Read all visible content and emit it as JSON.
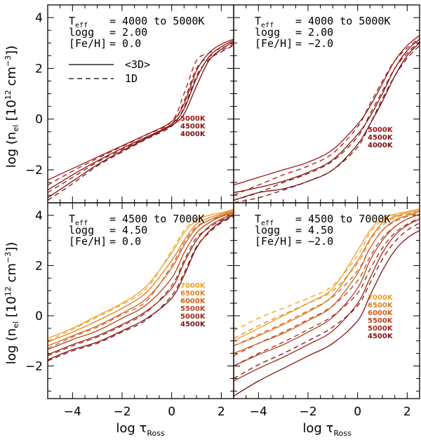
{
  "figure": {
    "ylabel_prefix": "log (n",
    "ylabel_sub": "el",
    "ylabel_mid": " [10",
    "ylabel_sup1": "12",
    "ylabel_unit": " cm",
    "ylabel_sup2": "−3",
    "ylabel_suffix": "])",
    "xlabel_prefix": "log τ",
    "xlabel_sub": "Ross",
    "legend_3d": "<3D>",
    "legend_1d": "1D"
  },
  "chart_data": [
    {
      "id": "top-left",
      "type": "line",
      "xlim": [
        -5,
        2.5
      ],
      "ylim": [
        -3.3,
        4.5
      ],
      "xticks": [
        -4,
        -2,
        0,
        2
      ],
      "yticks": [
        -2,
        0,
        2,
        4
      ],
      "annotation": {
        "teff_label": "T",
        "teff_sub": "eff",
        "teff_value": "= 4000 to 5000K",
        "logg_label": "logg",
        "logg_value": "= 2.00",
        "feh_label": "[Fe/H]",
        "feh_value": "= 0.0"
      },
      "temperature_labels": [
        "5000K",
        "4500K",
        "4000K"
      ],
      "colors": [
        "#a01818",
        "#8c1414",
        "#781010"
      ],
      "x": [
        -5,
        -4,
        -3,
        -2,
        -1,
        0,
        0.5,
        1,
        1.5,
        2,
        2.5
      ],
      "series": [
        {
          "name": "<3D> 5000K",
          "style": "solid",
          "values": [
            -2.4,
            -1.95,
            -1.5,
            -1.05,
            -0.6,
            -0.1,
            0.6,
            1.9,
            2.6,
            2.95,
            3.15
          ]
        },
        {
          "name": "<3D> 4500K",
          "style": "solid",
          "values": [
            -2.8,
            -2.2,
            -1.65,
            -1.15,
            -0.7,
            -0.2,
            0.4,
            1.6,
            2.45,
            2.85,
            3.1
          ]
        },
        {
          "name": "<3D> 4000K",
          "style": "solid",
          "values": [
            -3.1,
            -2.45,
            -1.8,
            -1.25,
            -0.75,
            -0.25,
            0.2,
            1.3,
            2.3,
            2.75,
            3.05
          ]
        },
        {
          "name": "1D 5000K",
          "style": "dashed",
          "values": [
            -2.6,
            -2.05,
            -1.55,
            -1.08,
            -0.62,
            -0.1,
            1.0,
            2.3,
            2.6,
            2.8,
            3.0
          ]
        },
        {
          "name": "1D 4500K",
          "style": "dashed",
          "values": [
            -2.9,
            -2.3,
            -1.7,
            -1.2,
            -0.72,
            -0.2,
            0.7,
            2.0,
            2.45,
            2.7,
            2.95
          ]
        },
        {
          "name": "1D 4000K",
          "style": "dashed",
          "values": [
            -3.2,
            -2.55,
            -1.85,
            -1.3,
            -0.78,
            -0.28,
            0.45,
            1.7,
            2.35,
            2.65,
            2.9
          ]
        }
      ]
    },
    {
      "id": "top-right",
      "type": "line",
      "xlim": [
        -5,
        2.5
      ],
      "ylim": [
        -3.3,
        4.5
      ],
      "xticks": [
        -4,
        -2,
        0,
        2
      ],
      "yticks": [
        -2,
        0,
        2,
        4
      ],
      "annotation": {
        "teff_label": "T",
        "teff_sub": "eff",
        "teff_value": "= 4000 to 5000K",
        "logg_label": "logg",
        "logg_value": "= 2.00",
        "feh_label": "[Fe/H]",
        "feh_value": "= −2.0"
      },
      "temperature_labels": [
        "5000K",
        "4500K",
        "4000K"
      ],
      "colors": [
        "#a01818",
        "#8c1414",
        "#781010"
      ],
      "x": [
        -5,
        -4,
        -3,
        -2,
        -1,
        0,
        0.5,
        1,
        1.5,
        2,
        2.5
      ],
      "series": [
        {
          "name": "<3D> 5000K",
          "style": "solid",
          "values": [
            -2.6,
            -2.3,
            -2.0,
            -1.7,
            -1.2,
            -0.2,
            0.5,
            1.4,
            2.3,
            2.9,
            3.3
          ]
        },
        {
          "name": "<3D> 4500K",
          "style": "solid",
          "values": [
            -2.9,
            -2.7,
            -2.45,
            -2.1,
            -1.6,
            -0.6,
            0.1,
            1.0,
            2.0,
            2.7,
            3.15
          ]
        },
        {
          "name": "<3D> 4000K",
          "style": "solid",
          "values": [
            -3.2,
            -2.9,
            -2.75,
            -2.45,
            -2.0,
            -1.0,
            -0.2,
            0.7,
            1.7,
            2.5,
            3.0
          ]
        },
        {
          "name": "1D 5000K",
          "style": "dashed",
          "values": [
            -3.0,
            -2.6,
            -2.2,
            -1.85,
            -1.35,
            -0.3,
            0.6,
            1.5,
            2.3,
            2.8,
            3.2
          ]
        },
        {
          "name": "1D 4500K",
          "style": "dashed",
          "values": [
            -3.2,
            -2.9,
            -2.5,
            -2.15,
            -1.65,
            -0.7,
            0.2,
            1.1,
            2.0,
            2.6,
            3.05
          ]
        },
        {
          "name": "1D 4000K",
          "style": "dashed",
          "values": [
            -3.3,
            -3.1,
            -2.8,
            -2.45,
            -2.0,
            -1.1,
            -0.2,
            0.8,
            1.7,
            2.4,
            2.9
          ]
        }
      ]
    },
    {
      "id": "bottom-left",
      "type": "line",
      "xlim": [
        -5,
        2.5
      ],
      "ylim": [
        -3.3,
        4.5
      ],
      "xticks": [
        -4,
        -2,
        0,
        2
      ],
      "yticks": [
        -2,
        0,
        2,
        4
      ],
      "annotation": {
        "teff_label": "T",
        "teff_sub": "eff",
        "teff_value": "= 4500 to 7000K",
        "logg_label": "logg",
        "logg_value": "= 4.50",
        "feh_label": "[Fe/H]",
        "feh_value": "= 0.0"
      },
      "temperature_labels": [
        "7000K",
        "6500K",
        "6000K",
        "5500K",
        "5000K",
        "4500K"
      ],
      "colors": [
        "#f0a020",
        "#e08020",
        "#d06020",
        "#b84020",
        "#a02818",
        "#801414"
      ],
      "x": [
        -5,
        -4,
        -3,
        -2,
        -1,
        0,
        0.5,
        1,
        1.5,
        2,
        2.5
      ],
      "series": [
        {
          "name": "<3D> 7000K",
          "style": "solid",
          "values": [
            -0.9,
            -0.5,
            0.0,
            0.5,
            1.2,
            2.5,
            3.3,
            3.8,
            4.0,
            4.1,
            4.25
          ]
        },
        {
          "name": "<3D> 6500K",
          "style": "solid",
          "values": [
            -1.05,
            -0.65,
            -0.2,
            0.3,
            0.95,
            2.2,
            3.0,
            3.65,
            3.9,
            4.05,
            4.2
          ]
        },
        {
          "name": "<3D> 6000K",
          "style": "solid",
          "values": [
            -1.2,
            -0.8,
            -0.4,
            0.1,
            0.7,
            1.9,
            2.8,
            3.5,
            3.8,
            4.0,
            4.15
          ]
        },
        {
          "name": "<3D> 5500K",
          "style": "solid",
          "values": [
            -1.35,
            -0.95,
            -0.6,
            -0.1,
            0.45,
            1.5,
            2.5,
            3.3,
            3.7,
            3.95,
            4.1
          ]
        },
        {
          "name": "<3D> 5000K",
          "style": "solid",
          "values": [
            -1.55,
            -1.15,
            -0.8,
            -0.35,
            0.2,
            1.1,
            2.1,
            3.0,
            3.55,
            3.85,
            4.05
          ]
        },
        {
          "name": "<3D> 4500K",
          "style": "solid",
          "values": [
            -1.75,
            -1.35,
            -1.05,
            -0.6,
            -0.1,
            0.7,
            1.6,
            2.7,
            3.35,
            3.75,
            4.0
          ]
        },
        {
          "name": "1D 7000K",
          "style": "dashed",
          "values": [
            -1.0,
            -0.55,
            -0.05,
            0.45,
            1.1,
            2.6,
            3.4,
            3.85,
            4.0,
            4.1,
            4.2
          ]
        },
        {
          "name": "1D 6000K",
          "style": "dashed",
          "values": [
            -1.3,
            -0.85,
            -0.45,
            0.05,
            0.6,
            2.0,
            2.9,
            3.55,
            3.8,
            3.95,
            4.1
          ]
        },
        {
          "name": "1D 5000K",
          "style": "dashed",
          "values": [
            -1.6,
            -1.2,
            -0.85,
            -0.4,
            0.15,
            1.2,
            2.2,
            3.1,
            3.5,
            3.8,
            4.0
          ]
        },
        {
          "name": "1D 4500K",
          "style": "dashed",
          "values": [
            -1.8,
            -1.4,
            -1.1,
            -0.65,
            -0.15,
            0.8,
            1.7,
            2.75,
            3.3,
            3.7,
            3.95
          ]
        }
      ]
    },
    {
      "id": "bottom-right",
      "type": "line",
      "xlim": [
        -5,
        2.5
      ],
      "ylim": [
        -3.3,
        4.5
      ],
      "xticks": [
        -4,
        -2,
        0,
        2
      ],
      "yticks": [
        -2,
        0,
        2,
        4
      ],
      "annotation": {
        "teff_label": "T",
        "teff_sub": "eff",
        "teff_value": "= 4500 to 7000K",
        "logg_label": "logg",
        "logg_value": "= 4.50",
        "feh_label": "[Fe/H]",
        "feh_value": "= −2.0"
      },
      "temperature_labels": [
        "7000K",
        "6500K",
        "6000K",
        "5500K",
        "5000K",
        "4500K"
      ],
      "colors": [
        "#f0a020",
        "#e08020",
        "#d06020",
        "#b84020",
        "#a02818",
        "#801414"
      ],
      "x": [
        -5,
        -4,
        -3,
        -2,
        -1,
        0,
        0.5,
        1,
        1.5,
        2,
        2.5
      ],
      "series": [
        {
          "name": "<3D> 7000K",
          "style": "solid",
          "values": [
            -1.0,
            -0.5,
            0.0,
            0.5,
            1.1,
            2.6,
            3.4,
            3.9,
            4.05,
            4.15,
            4.25
          ]
        },
        {
          "name": "<3D> 6500K",
          "style": "solid",
          "values": [
            -1.2,
            -0.8,
            -0.35,
            0.15,
            0.8,
            2.2,
            3.05,
            3.7,
            3.95,
            4.1,
            4.2
          ]
        },
        {
          "name": "<3D> 6000K",
          "style": "solid",
          "values": [
            -1.5,
            -1.1,
            -0.7,
            -0.2,
            0.4,
            1.7,
            2.7,
            3.4,
            3.8,
            4.0,
            4.15
          ]
        },
        {
          "name": "<3D> 5500K",
          "style": "solid",
          "values": [
            -2.0,
            -1.55,
            -1.15,
            -0.65,
            -0.05,
            1.1,
            2.2,
            3.0,
            3.55,
            3.85,
            4.05
          ]
        },
        {
          "name": "<3D> 5000K",
          "style": "solid",
          "values": [
            -2.6,
            -2.1,
            -1.65,
            -1.15,
            -0.6,
            0.5,
            1.5,
            2.5,
            3.2,
            3.6,
            3.85
          ]
        },
        {
          "name": "<3D> 4500K",
          "style": "solid",
          "values": [
            -3.2,
            -2.6,
            -2.1,
            -1.6,
            -1.1,
            -0.2,
            0.8,
            1.8,
            2.6,
            3.1,
            3.4
          ]
        },
        {
          "name": "1D 7000K",
          "style": "dashed",
          "values": [
            -0.6,
            -0.1,
            0.3,
            0.7,
            1.2,
            2.4,
            3.3,
            3.8,
            4.0,
            4.1,
            4.2
          ]
        },
        {
          "name": "1D 6500K",
          "style": "dashed",
          "values": [
            -0.9,
            -0.4,
            0.05,
            0.5,
            1.0,
            2.1,
            3.0,
            3.6,
            3.9,
            4.05,
            4.15
          ]
        },
        {
          "name": "1D 6000K",
          "style": "dashed",
          "values": [
            -1.2,
            -0.75,
            -0.3,
            0.2,
            0.75,
            1.8,
            2.7,
            3.4,
            3.75,
            3.95,
            4.1
          ]
        },
        {
          "name": "1D 5500K",
          "style": "dashed",
          "values": [
            -1.6,
            -1.1,
            -0.65,
            -0.15,
            0.4,
            1.4,
            2.35,
            3.1,
            3.55,
            3.85,
            4.05
          ]
        },
        {
          "name": "1D 5000K",
          "style": "dashed",
          "values": [
            -2.0,
            -1.5,
            -1.05,
            -0.55,
            0.0,
            0.9,
            1.85,
            2.7,
            3.3,
            3.65,
            3.9
          ]
        },
        {
          "name": "1D 4500K",
          "style": "dashed",
          "values": [
            -2.5,
            -1.95,
            -1.5,
            -1.0,
            -0.45,
            0.4,
            1.3,
            2.25,
            2.95,
            3.4,
            3.7
          ]
        }
      ]
    }
  ]
}
